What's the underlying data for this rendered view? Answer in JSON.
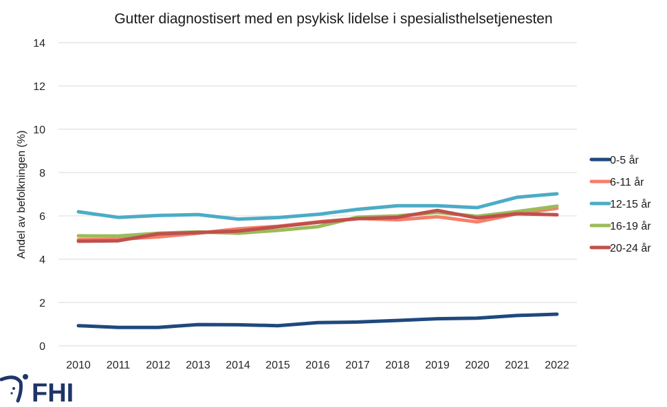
{
  "chart_data": {
    "type": "line",
    "title": "Gutter diagnostisert med en psykisk lidelse i spesialisthelsetjenesten",
    "xlabel": "",
    "ylabel": "Andel av befolkningen (%)",
    "ylim": [
      0,
      14
    ],
    "yticks": [
      "0",
      "2",
      "4",
      "6",
      "8",
      "10",
      "12",
      "14"
    ],
    "grid": true,
    "legend_position": "right",
    "categories": [
      "2010",
      "2011",
      "2012",
      "2013",
      "2014",
      "2015",
      "2016",
      "2017",
      "2018",
      "2019",
      "2020",
      "2021",
      "2022"
    ],
    "series": [
      {
        "name": "0-5 år",
        "color": "#1f497d",
        "values": [
          0.93,
          0.85,
          0.85,
          0.98,
          0.97,
          0.93,
          1.07,
          1.1,
          1.17,
          1.25,
          1.28,
          1.4,
          1.46
        ]
      },
      {
        "name": "6-11 år",
        "color": "#f4806a",
        "values": [
          4.9,
          4.92,
          5.03,
          5.2,
          5.4,
          5.52,
          5.72,
          5.88,
          5.82,
          5.96,
          5.72,
          6.1,
          6.35
        ]
      },
      {
        "name": "12-15 år",
        "color": "#4bacc6",
        "values": [
          6.19,
          5.93,
          6.02,
          6.06,
          5.85,
          5.92,
          6.07,
          6.3,
          6.47,
          6.47,
          6.38,
          6.86,
          7.02
        ]
      },
      {
        "name": "16-19 år",
        "color": "#9bbb59",
        "values": [
          5.08,
          5.07,
          5.2,
          5.26,
          5.2,
          5.33,
          5.5,
          5.94,
          6.0,
          6.16,
          5.98,
          6.2,
          6.45
        ]
      },
      {
        "name": "20-24 år",
        "color": "#c0504d",
        "values": [
          4.83,
          4.85,
          5.17,
          5.23,
          5.3,
          5.5,
          5.7,
          5.87,
          5.93,
          6.25,
          5.9,
          6.1,
          6.05
        ]
      }
    ]
  },
  "logo": {
    "text": "FHI",
    "color": "#1f3668"
  }
}
